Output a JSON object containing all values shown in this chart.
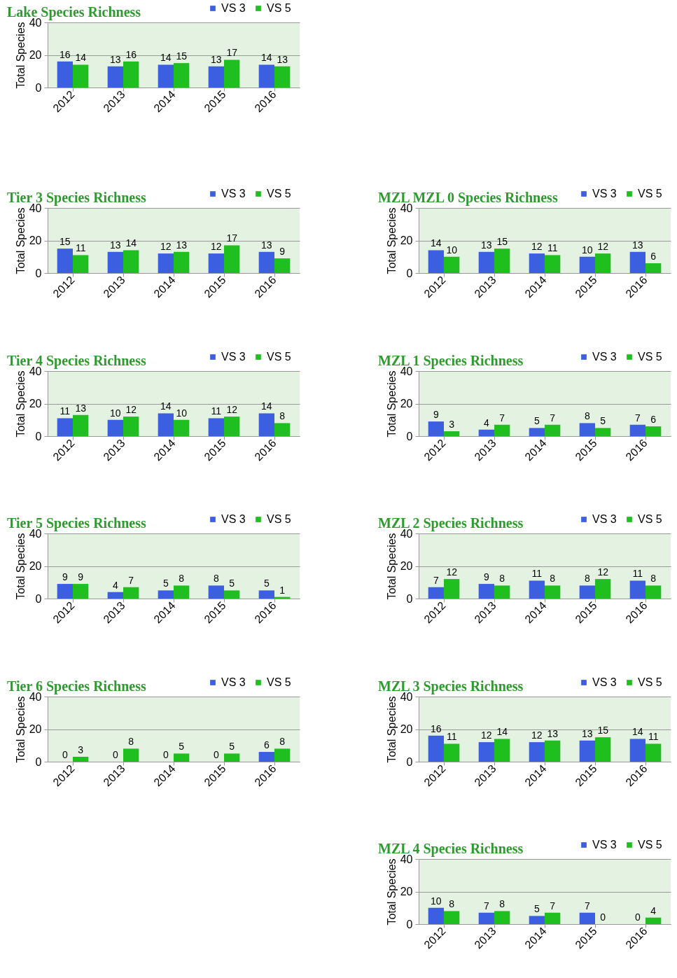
{
  "chart_data": [
    {
      "type": "bar",
      "title": "Lake Species Richness",
      "ylabel": "Total Species",
      "categories": [
        "2012",
        "2013",
        "2014",
        "2015",
        "2016"
      ],
      "series": [
        {
          "name": "VS 3",
          "color": "#3b5fe0",
          "values": [
            16,
            13,
            14,
            13,
            14
          ]
        },
        {
          "name": "VS 5",
          "color": "#1fbf1f",
          "values": [
            14,
            16,
            15,
            17,
            13
          ]
        }
      ],
      "ylim": [
        0,
        40
      ],
      "yticks": [
        0,
        20,
        40
      ],
      "grid": "y",
      "legend": "top right",
      "data_labels": true
    },
    {
      "type": "bar",
      "title": "Tier 3 Species Richness",
      "ylabel": "Total Species",
      "categories": [
        "2012",
        "2013",
        "2014",
        "2015",
        "2016"
      ],
      "series": [
        {
          "name": "VS 3",
          "color": "#3b5fe0",
          "values": [
            15,
            13,
            12,
            12,
            13
          ]
        },
        {
          "name": "VS 5",
          "color": "#1fbf1f",
          "values": [
            11,
            14,
            13,
            17,
            9
          ]
        }
      ],
      "ylim": [
        0,
        40
      ],
      "yticks": [
        0,
        20,
        40
      ],
      "grid": "y",
      "legend": "top right",
      "data_labels": true
    },
    {
      "type": "bar",
      "title": "MZL MZL 0 Species Richness",
      "ylabel": "Total Species",
      "categories": [
        "2012",
        "2013",
        "2014",
        "2015",
        "2016"
      ],
      "series": [
        {
          "name": "VS 3",
          "color": "#3b5fe0",
          "values": [
            14,
            13,
            12,
            10,
            13
          ]
        },
        {
          "name": "VS 5",
          "color": "#1fbf1f",
          "values": [
            10,
            15,
            11,
            12,
            6
          ]
        }
      ],
      "ylim": [
        0,
        40
      ],
      "yticks": [
        0,
        20,
        40
      ],
      "grid": "y",
      "legend": "top right",
      "data_labels": true
    },
    {
      "type": "bar",
      "title": "Tier 4 Species Richness",
      "ylabel": "Total Species",
      "categories": [
        "2012",
        "2013",
        "2014",
        "2015",
        "2016"
      ],
      "series": [
        {
          "name": "VS 3",
          "color": "#3b5fe0",
          "values": [
            11,
            10,
            14,
            11,
            14
          ]
        },
        {
          "name": "VS 5",
          "color": "#1fbf1f",
          "values": [
            13,
            12,
            10,
            12,
            8
          ]
        }
      ],
      "ylim": [
        0,
        40
      ],
      "yticks": [
        0,
        20,
        40
      ],
      "grid": "y",
      "legend": "top right",
      "data_labels": true
    },
    {
      "type": "bar",
      "title": "MZL 1 Species Richness",
      "ylabel": "Total Species",
      "categories": [
        "2012",
        "2013",
        "2014",
        "2015",
        "2016"
      ],
      "series": [
        {
          "name": "VS 3",
          "color": "#3b5fe0",
          "values": [
            9,
            4,
            5,
            8,
            7
          ]
        },
        {
          "name": "VS 5",
          "color": "#1fbf1f",
          "values": [
            3,
            7,
            7,
            5,
            6
          ]
        }
      ],
      "ylim": [
        0,
        40
      ],
      "yticks": [
        0,
        20,
        40
      ],
      "grid": "y",
      "legend": "top right",
      "data_labels": true
    },
    {
      "type": "bar",
      "title": "Tier 5 Species Richness",
      "ylabel": "Total Species",
      "categories": [
        "2012",
        "2013",
        "2014",
        "2015",
        "2016"
      ],
      "series": [
        {
          "name": "VS 3",
          "color": "#3b5fe0",
          "values": [
            9,
            4,
            5,
            8,
            5
          ]
        },
        {
          "name": "VS 5",
          "color": "#1fbf1f",
          "values": [
            9,
            7,
            8,
            5,
            1
          ]
        }
      ],
      "ylim": [
        0,
        40
      ],
      "yticks": [
        0,
        20,
        40
      ],
      "grid": "y",
      "legend": "top right",
      "data_labels": true
    },
    {
      "type": "bar",
      "title": "MZL 2 Species Richness",
      "ylabel": "Total Species",
      "categories": [
        "2012",
        "2013",
        "2014",
        "2015",
        "2016"
      ],
      "series": [
        {
          "name": "VS 3",
          "color": "#3b5fe0",
          "values": [
            7,
            9,
            11,
            8,
            11
          ]
        },
        {
          "name": "VS 5",
          "color": "#1fbf1f",
          "values": [
            12,
            8,
            8,
            12,
            8
          ]
        }
      ],
      "ylim": [
        0,
        40
      ],
      "yticks": [
        0,
        20,
        40
      ],
      "grid": "y",
      "legend": "top right",
      "data_labels": true
    },
    {
      "type": "bar",
      "title": "Tier 6 Species Richness",
      "ylabel": "Total Species",
      "categories": [
        "2012",
        "2013",
        "2014",
        "2015",
        "2016"
      ],
      "series": [
        {
          "name": "VS 3",
          "color": "#3b5fe0",
          "values": [
            0,
            0,
            0,
            0,
            6
          ]
        },
        {
          "name": "VS 5",
          "color": "#1fbf1f",
          "values": [
            3,
            8,
            5,
            5,
            8
          ]
        }
      ],
      "ylim": [
        0,
        40
      ],
      "yticks": [
        0,
        20,
        40
      ],
      "grid": "y",
      "legend": "top right",
      "data_labels": true
    },
    {
      "type": "bar",
      "title": "MZL 3 Species Richness",
      "ylabel": "Total Species",
      "categories": [
        "2012",
        "2013",
        "2014",
        "2015",
        "2016"
      ],
      "series": [
        {
          "name": "VS 3",
          "color": "#3b5fe0",
          "values": [
            16,
            12,
            12,
            13,
            14
          ]
        },
        {
          "name": "VS 5",
          "color": "#1fbf1f",
          "values": [
            11,
            14,
            13,
            15,
            11
          ]
        }
      ],
      "ylim": [
        0,
        40
      ],
      "yticks": [
        0,
        20,
        40
      ],
      "grid": "y",
      "legend": "top right",
      "data_labels": true
    },
    {
      "type": "bar",
      "title": "MZL 4 Species Richness",
      "ylabel": "Total Species",
      "categories": [
        "2012",
        "2013",
        "2014",
        "2015",
        "2016"
      ],
      "series": [
        {
          "name": "VS 3",
          "color": "#3b5fe0",
          "values": [
            10,
            7,
            5,
            7,
            0
          ]
        },
        {
          "name": "VS 5",
          "color": "#1fbf1f",
          "values": [
            8,
            8,
            7,
            0,
            4
          ]
        }
      ],
      "ylim": [
        0,
        40
      ],
      "yticks": [
        0,
        20,
        40
      ],
      "grid": "y",
      "legend": "top right",
      "data_labels": true
    }
  ]
}
